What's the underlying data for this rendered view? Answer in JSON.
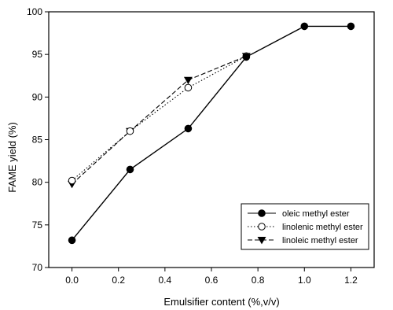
{
  "chart_data": {
    "type": "line",
    "title": "",
    "xlabel": "Emulsifier content (%,v/v)",
    "ylabel": "FAME yield (%)",
    "xlim": [
      -0.1,
      1.3
    ],
    "ylim": [
      70,
      100
    ],
    "xticks": [
      "0.0",
      "0.2",
      "0.4",
      "0.6",
      "0.8",
      "1.0",
      "1.2"
    ],
    "yticks": [
      "70",
      "75",
      "80",
      "85",
      "90",
      "95",
      "100"
    ],
    "grid": false,
    "legend_position": "bottom-right",
    "series": [
      {
        "name": "oleic methyl ester",
        "marker": "filled-circle",
        "line": "solid",
        "x": [
          0.0,
          0.25,
          0.5,
          0.75,
          1.0,
          1.2
        ],
        "y": [
          73.2,
          81.5,
          86.3,
          94.7,
          98.3,
          98.3
        ]
      },
      {
        "name": "linolenic methyl ester",
        "marker": "open-circle",
        "line": "dotted",
        "x": [
          0.0,
          0.25,
          0.5,
          0.75
        ],
        "y": [
          80.2,
          86.0,
          91.1,
          94.8
        ]
      },
      {
        "name": "linoleic methyl ester",
        "marker": "filled-triangle-down",
        "line": "dashed",
        "x": [
          0.0,
          0.25,
          0.5,
          0.75
        ],
        "y": [
          79.8,
          86.0,
          92.0,
          94.8
        ]
      }
    ]
  }
}
